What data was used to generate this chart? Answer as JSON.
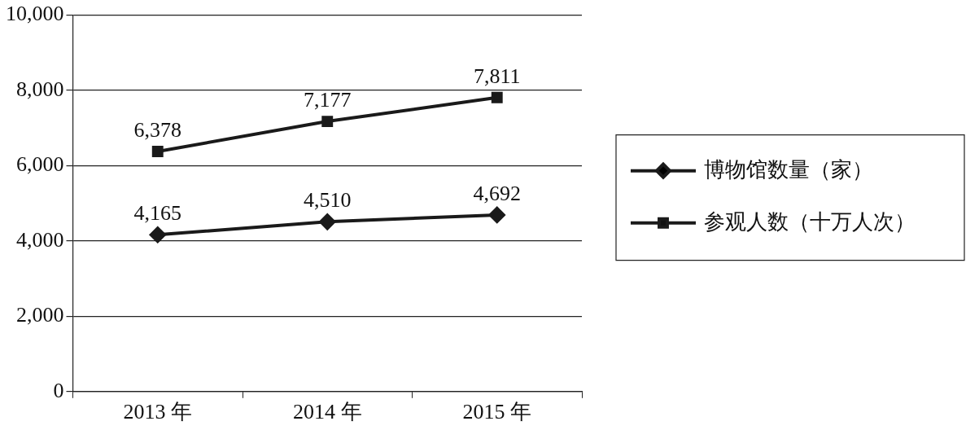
{
  "chart_data": {
    "type": "line",
    "categories": [
      "2013 年",
      "2014 年",
      "2015 年"
    ],
    "series": [
      {
        "name": "博物馆数量（家）",
        "color": "#1a1a1a",
        "values": [
          4165,
          4510,
          4692
        ],
        "value_labels": [
          "4,165",
          "4,510",
          "4,692"
        ],
        "marker": "diamond"
      },
      {
        "name": "参观人数（十万人次）",
        "color": "#1a1a1a",
        "values": [
          6378,
          7177,
          7811
        ],
        "value_labels": [
          "6,378",
          "7,177",
          "7,811"
        ],
        "marker": "square"
      }
    ],
    "ylim": [
      0,
      10000
    ],
    "yticks": [
      {
        "value": 0,
        "label": "0"
      },
      {
        "value": 2000,
        "label": "2,000"
      },
      {
        "value": 4000,
        "label": "4,000"
      },
      {
        "value": 6000,
        "label": "6,000"
      },
      {
        "value": 8000,
        "label": "8,000"
      },
      {
        "value": 10000,
        "label": "10,000"
      }
    ],
    "grid": "y",
    "legend": "right",
    "line_style": "solid"
  }
}
